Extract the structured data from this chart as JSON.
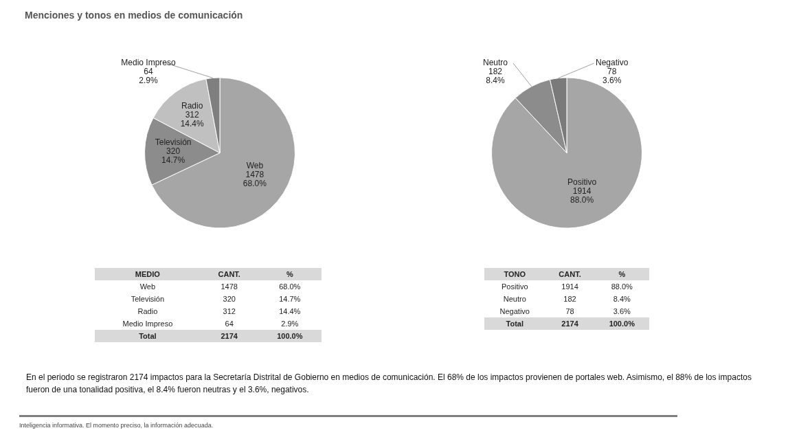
{
  "chart_data": [
    {
      "type": "pie",
      "title": "Menciones y tonos en medios de comunicación",
      "categories": [
        "Web",
        "Televisión",
        "Radio",
        "Medio Impreso"
      ],
      "values": [
        1478,
        320,
        312,
        64
      ],
      "value_labels": [
        "1478\n68.0%",
        "320\n14.7%",
        "312\n14.4%",
        "64\n2.9%"
      ],
      "colors": [
        "#a6a6a6",
        "#8c8c8c",
        "#c0c0c0",
        "#7f7f7f"
      ],
      "annotations": [
        "En el periodo se registraron 2174 impactos para la Secretaría Distrital de Gobierno en medios de comunicación. El 68% de los impactos provienen de portales web. Asimismo, el 88% de los impactos fueron de una tonalidad positiva, el 8.4% fueron neutras y el 3.6%, negativos.",
        "Inteligencia informativa. El momento preciso, la información adecuada."
      ]
    },
    {
      "type": "pie",
      "categories": [
        "Positivo",
        "Neutro",
        "Negativo"
      ],
      "values": [
        1914,
        182,
        78
      ],
      "value_labels": [
        "1914\n88.0%",
        "182\n8.4%",
        "78\n3.6%"
      ],
      "colors": [
        "#a6a6a6",
        "#8c8c8c",
        "#7a7a7a"
      ]
    },
    {
      "type": "other",
      "annotations": [
        "MEDIO"
      ],
      "categories": [
        "CANT.",
        "%"
      ],
      "y_categories": [
        "Web",
        "Televisión",
        "Radio",
        "Medio Impreso",
        "Total"
      ],
      "cell_labels": [
        [
          "1478",
          "68.0%"
        ],
        [
          "320",
          "14.7%"
        ],
        [
          "312",
          "14.4%"
        ],
        [
          "64",
          "2.9%"
        ],
        [
          "2174",
          "100.0%"
        ]
      ]
    },
    {
      "type": "other",
      "annotations": [
        "TONO"
      ],
      "categories": [
        "CANT.",
        "%"
      ],
      "y_categories": [
        "Positivo",
        "Neutro",
        "Negativo",
        "Total"
      ],
      "cell_labels": [
        [
          "1914",
          "88.0%"
        ],
        [
          "182",
          "8.4%"
        ],
        [
          "78",
          "3.6%"
        ],
        [
          "2174",
          "100.0%"
        ]
      ]
    }
  ]
}
